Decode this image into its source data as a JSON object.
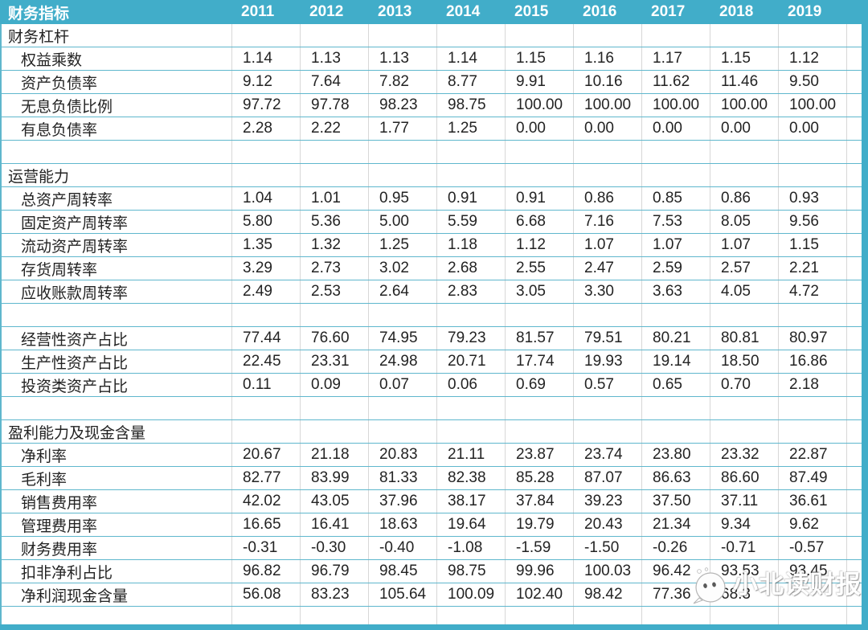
{
  "colors": {
    "header_bg": "#41adc9",
    "horizontal_gridline": "#5fb7cd",
    "vertical_gridline": "#d7d7d7",
    "header_text": "#ffffff",
    "body_text": "#232323"
  },
  "table": {
    "header": {
      "label": "财务指标",
      "years": [
        "2011",
        "2012",
        "2013",
        "2014",
        "2015",
        "2016",
        "2017",
        "2018",
        "2019"
      ]
    },
    "rows": [
      {
        "type": "section",
        "label": "财务杠杆",
        "values": [
          "",
          "",
          "",
          "",
          "",
          "",
          "",
          "",
          ""
        ]
      },
      {
        "type": "data",
        "label": "权益乘数",
        "values": [
          "1.14",
          "1.13",
          "1.13",
          "1.14",
          "1.15",
          "1.16",
          "1.17",
          "1.15",
          "1.12"
        ]
      },
      {
        "type": "data",
        "label": "资产负债率",
        "values": [
          "9.12",
          "7.64",
          "7.82",
          "8.77",
          "9.91",
          "10.16",
          "11.62",
          "11.46",
          "9.50"
        ]
      },
      {
        "type": "data",
        "label": "无息负债比例",
        "values": [
          "97.72",
          "97.78",
          "98.23",
          "98.75",
          "100.00",
          "100.00",
          "100.00",
          "100.00",
          "100.00"
        ]
      },
      {
        "type": "data",
        "label": "有息负债率",
        "values": [
          "2.28",
          "2.22",
          "1.77",
          "1.25",
          "0.00",
          "0.00",
          "0.00",
          "0.00",
          "0.00"
        ]
      },
      {
        "type": "spacer",
        "label": "",
        "values": [
          "",
          "",
          "",
          "",
          "",
          "",
          "",
          "",
          ""
        ]
      },
      {
        "type": "section",
        "label": "运营能力",
        "values": [
          "",
          "",
          "",
          "",
          "",
          "",
          "",
          "",
          ""
        ]
      },
      {
        "type": "data",
        "label": "总资产周转率",
        "values": [
          "1.04",
          "1.01",
          "0.95",
          "0.91",
          "0.91",
          "0.86",
          "0.85",
          "0.86",
          "0.93"
        ]
      },
      {
        "type": "data",
        "label": "固定资产周转率",
        "values": [
          "5.80",
          "5.36",
          "5.00",
          "5.59",
          "6.68",
          "7.16",
          "7.53",
          "8.05",
          "9.56"
        ]
      },
      {
        "type": "data",
        "label": "流动资产周转率",
        "values": [
          "1.35",
          "1.32",
          "1.25",
          "1.18",
          "1.12",
          "1.07",
          "1.07",
          "1.07",
          "1.15"
        ]
      },
      {
        "type": "data",
        "label": "存货周转率",
        "values": [
          "3.29",
          "2.73",
          "3.02",
          "2.68",
          "2.55",
          "2.47",
          "2.59",
          "2.57",
          "2.21"
        ]
      },
      {
        "type": "data",
        "label": "应收账款周转率",
        "values": [
          "2.49",
          "2.53",
          "2.64",
          "2.83",
          "3.05",
          "3.30",
          "3.63",
          "4.05",
          "4.72"
        ]
      },
      {
        "type": "spacer",
        "label": "",
        "values": [
          "",
          "",
          "",
          "",
          "",
          "",
          "",
          "",
          ""
        ]
      },
      {
        "type": "data",
        "label": "经营性资产占比",
        "values": [
          "77.44",
          "76.60",
          "74.95",
          "79.23",
          "81.57",
          "79.51",
          "80.21",
          "80.81",
          "80.97"
        ]
      },
      {
        "type": "data",
        "label": "生产性资产占比",
        "values": [
          "22.45",
          "23.31",
          "24.98",
          "20.71",
          "17.74",
          "19.93",
          "19.14",
          "18.50",
          "16.86"
        ]
      },
      {
        "type": "data",
        "label": "投资类资产占比",
        "values": [
          "0.11",
          "0.09",
          "0.07",
          "0.06",
          "0.69",
          "0.57",
          "0.65",
          "0.70",
          "2.18"
        ]
      },
      {
        "type": "spacer",
        "label": "",
        "values": [
          "",
          "",
          "",
          "",
          "",
          "",
          "",
          "",
          ""
        ]
      },
      {
        "type": "section",
        "label": "盈利能力及现金含量",
        "values": [
          "",
          "",
          "",
          "",
          "",
          "",
          "",
          "",
          ""
        ]
      },
      {
        "type": "data",
        "label": "净利率",
        "values": [
          "20.67",
          "21.18",
          "20.83",
          "21.11",
          "23.87",
          "23.74",
          "23.80",
          "23.32",
          "22.87"
        ]
      },
      {
        "type": "data",
        "label": "毛利率",
        "values": [
          "82.77",
          "83.99",
          "81.33",
          "82.38",
          "85.28",
          "87.07",
          "86.63",
          "86.60",
          "87.49"
        ]
      },
      {
        "type": "data",
        "label": "销售费用率",
        "values": [
          "42.02",
          "43.05",
          "37.96",
          "38.17",
          "37.84",
          "39.23",
          "37.50",
          "37.11",
          "36.61"
        ]
      },
      {
        "type": "data",
        "label": "管理费用率",
        "values": [
          "16.65",
          "16.41",
          "18.63",
          "19.64",
          "19.79",
          "20.43",
          "21.34",
          "9.34",
          "9.62"
        ]
      },
      {
        "type": "data",
        "label": "财务费用率",
        "values": [
          "-0.31",
          "-0.30",
          "-0.40",
          "-1.08",
          "-1.59",
          "-1.50",
          "-0.26",
          "-0.71",
          "-0.57"
        ]
      },
      {
        "type": "data",
        "label": "扣非净利占比",
        "values": [
          "96.82",
          "96.79",
          "98.45",
          "98.75",
          "99.96",
          "100.03",
          "96.42",
          "93.53",
          "93.45"
        ]
      },
      {
        "type": "data",
        "label": "净利润现金含量",
        "values": [
          "56.08",
          "83.23",
          "105.64",
          "100.09",
          "102.40",
          "98.42",
          "77.36",
          "68.3",
          ""
        ]
      },
      {
        "type": "spacer",
        "label": "",
        "values": [
          "",
          "",
          "",
          "",
          "",
          "",
          "",
          "",
          ""
        ]
      }
    ]
  },
  "watermark": {
    "text": "小北读财报",
    "icon": "wechat-bubble-icon"
  }
}
